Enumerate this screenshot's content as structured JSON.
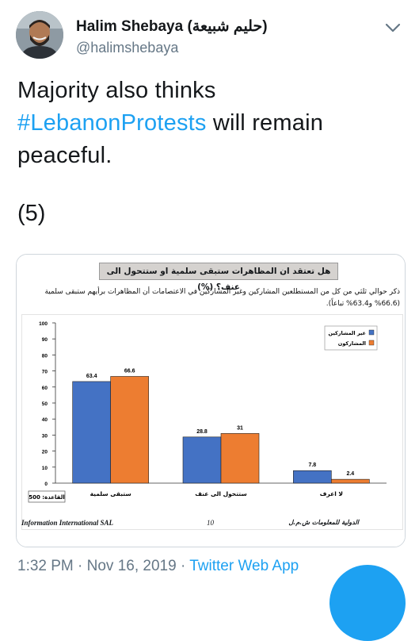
{
  "author": {
    "name": "Halim Shebaya (حليم شبيعة)",
    "handle": "@halimshebaya"
  },
  "tweet": {
    "text_line1": "Majority also thinks",
    "hashtag": "#LebanonProtests",
    "text_line2_rest": " will remain",
    "text_line3": "peaceful.",
    "number": "(5)"
  },
  "icons": {
    "more": "chevron-down-icon",
    "compose": "compose-fab-icon",
    "avatar": "profile-photo"
  },
  "colors": {
    "link": "#1da1f2",
    "muted": "#657786",
    "series_non_participants": "#4472c4",
    "series_participants": "#ed7d31"
  },
  "slide": {
    "question": "هل تعتقد ان المظاهرات ستبقى سلمية او ستتحول الى عنف؟ (%)",
    "description": "ذكر حوالي ثلثي من كل من المستطلعين المشاركين وغير المشاركين في الاعتصامات أن المظاهرات برأيهم ستبقى سلمية (66.6% و63.4% تباعاً).",
    "base_label": "القاعدة: 500",
    "footer_left": "Information International SAL",
    "page_number": "10",
    "footer_right": "الدولية للمعلومات ش.م.ل"
  },
  "chart_data": {
    "type": "bar",
    "categories": [
      "ستبقى سلمية",
      "ستتحول الى عنف",
      "لا اعرف"
    ],
    "series": [
      {
        "name": "غير المشاركين",
        "values": [
          63.4,
          28.8,
          7.8
        ]
      },
      {
        "name": "المشاركون",
        "values": [
          66.6,
          31,
          2.4
        ]
      }
    ],
    "value_labels": [
      [
        "63.4",
        "28.8",
        "7.8"
      ],
      [
        "66.6",
        "31",
        "2.4"
      ]
    ],
    "yticks": [
      "0",
      "10",
      "20",
      "30",
      "40",
      "50",
      "60",
      "70",
      "80",
      "90",
      "100"
    ],
    "ylim": [
      0,
      100
    ],
    "legend_position": "top-right",
    "grid": false
  },
  "meta": {
    "time": "1:32 PM · Nov 16, 2019 · ",
    "app": "Twitter Web App"
  }
}
